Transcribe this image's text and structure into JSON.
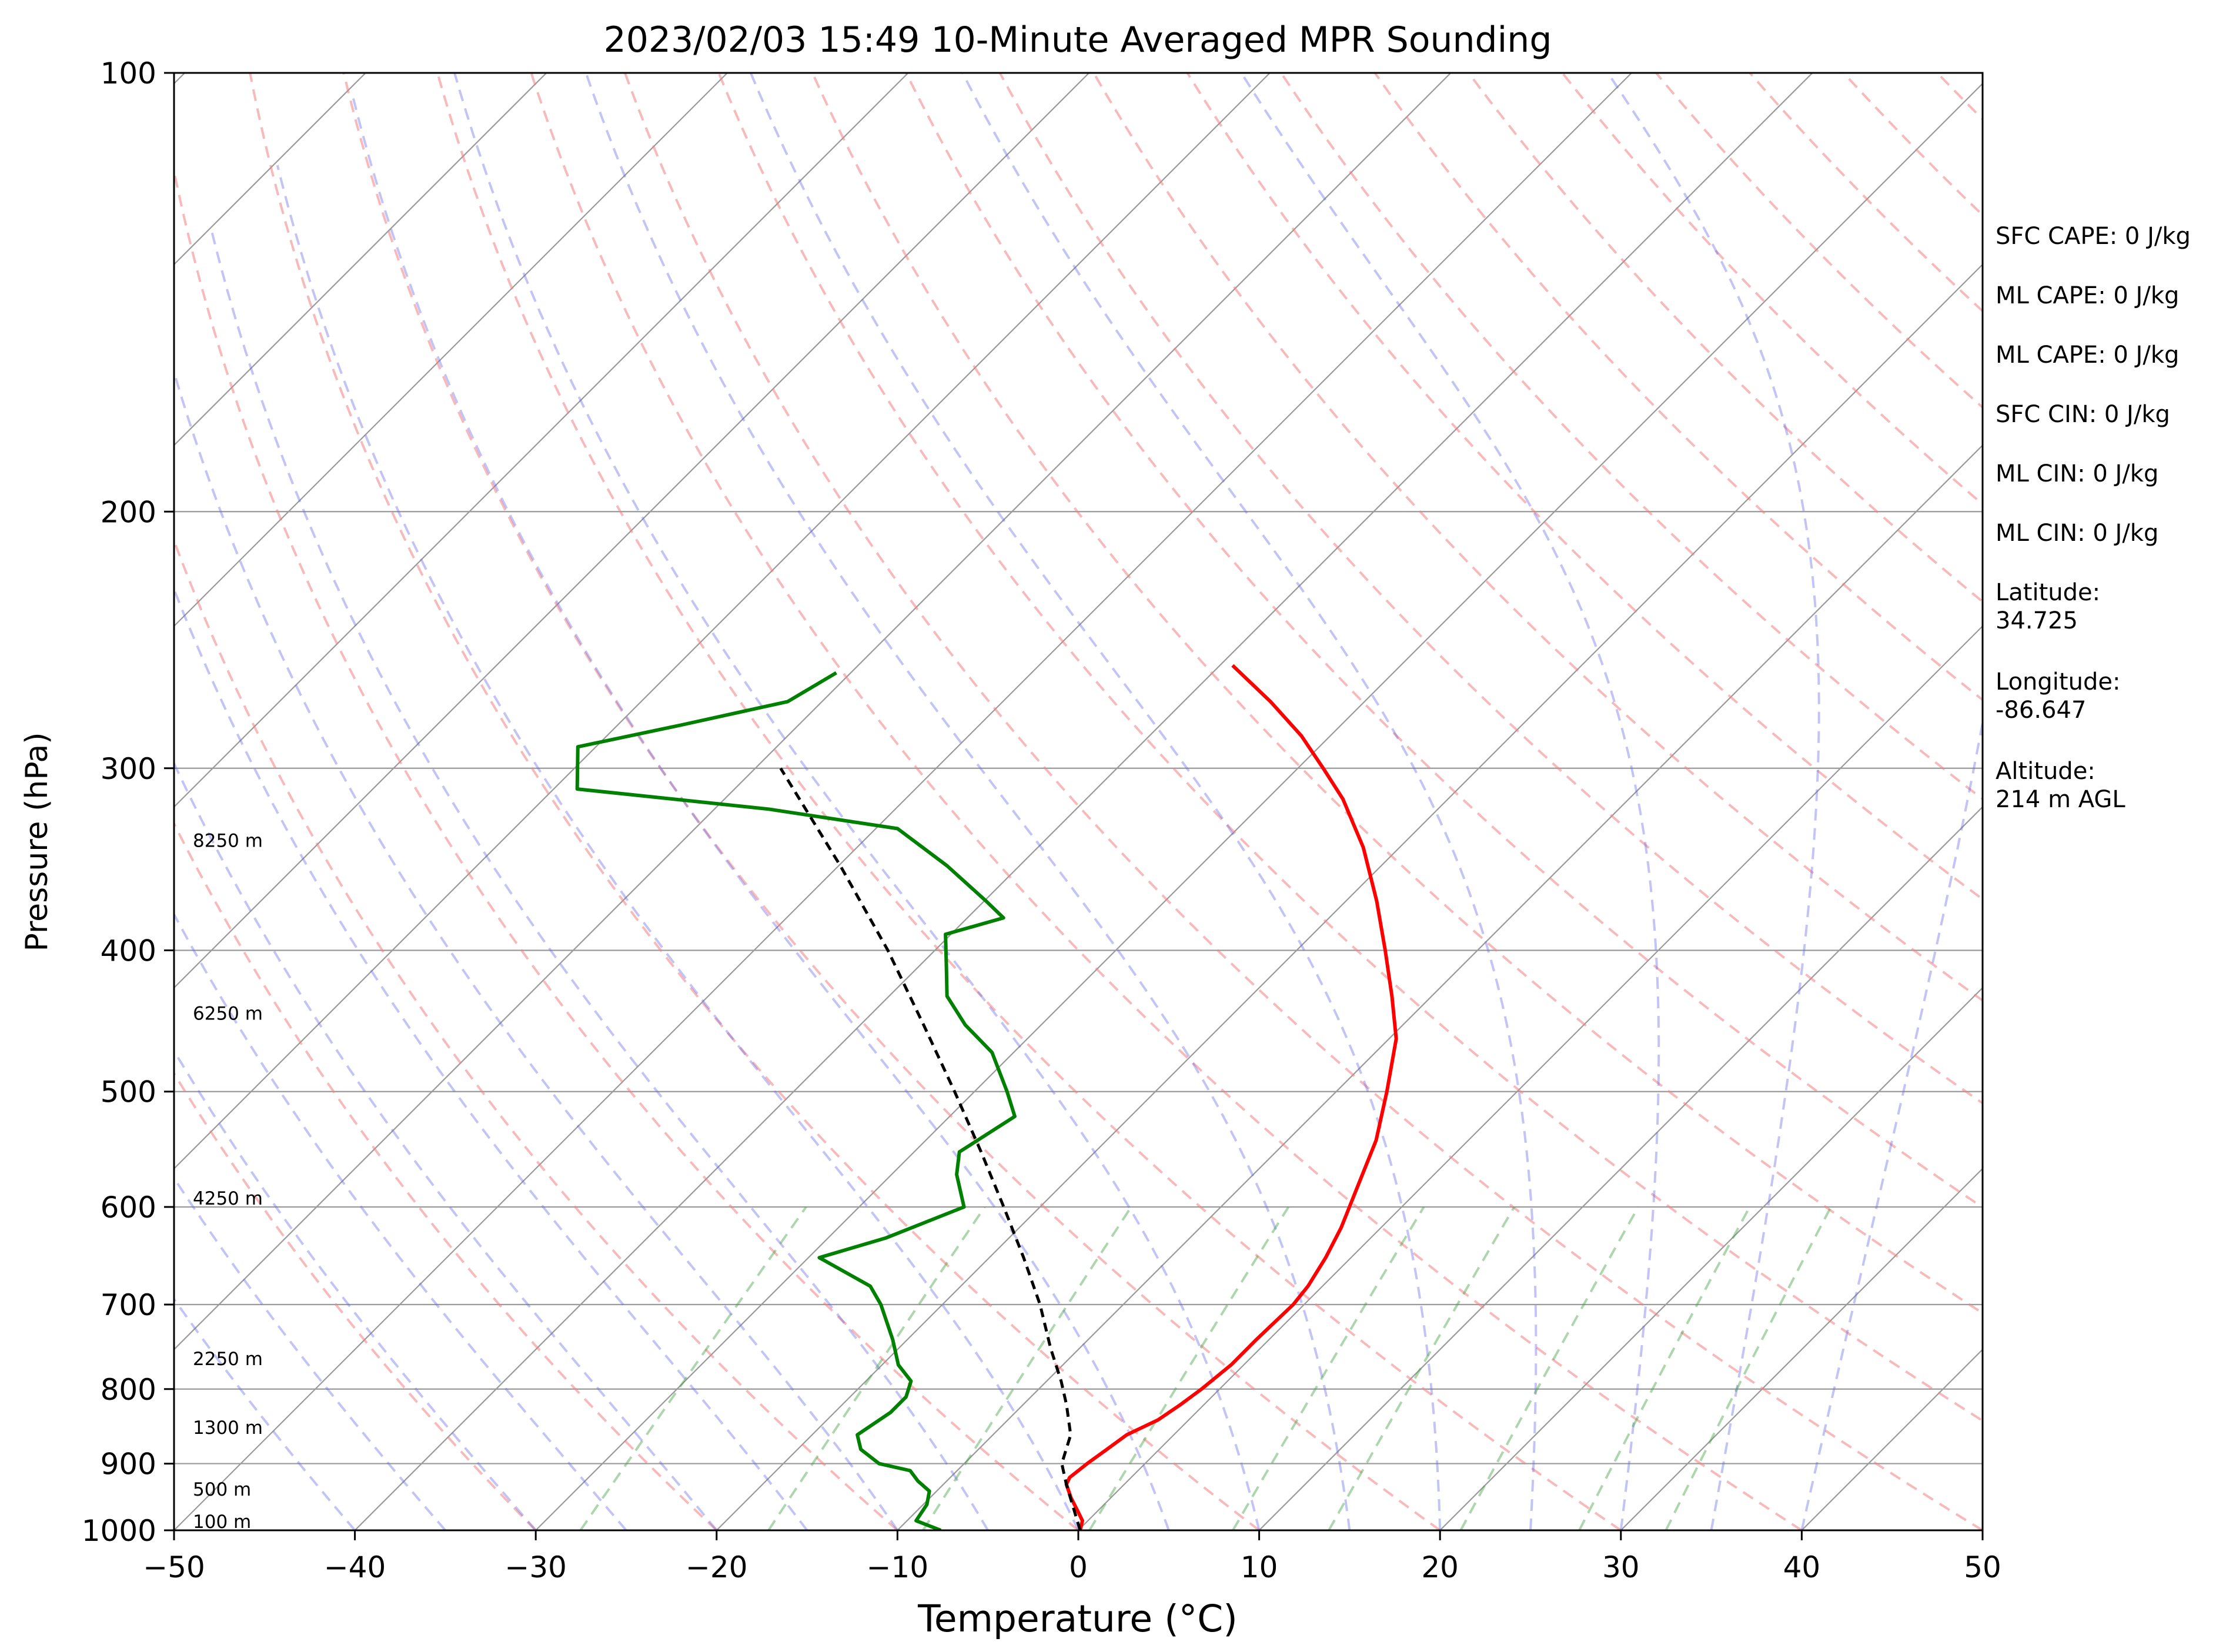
{
  "chart_data": {
    "type": "line",
    "title": "2023/02/03 15:49 10-Minute Averaged MPR Sounding",
    "xlabel": "Temperature (°C)",
    "ylabel": "Pressure (hPa)",
    "xlim": [
      -50,
      50
    ],
    "ylim": [
      1000,
      100
    ],
    "y_scale": "log",
    "skew_degrees": 45,
    "xticks": [
      "−50",
      "−40",
      "−30",
      "−20",
      "−10",
      "0",
      "10",
      "20",
      "30",
      "40",
      "50"
    ],
    "yticks": [
      "100",
      "200",
      "300",
      "400",
      "500",
      "600",
      "700",
      "800",
      "900",
      "1000"
    ],
    "grid": "horizontal isobars and skewed isotherms",
    "background_lines": {
      "dry_adiabats_color": "#f08080",
      "moist_adiabats_color": "#6a6ae8",
      "mixing_ratio_color": "#4aa44a"
    },
    "series": [
      {
        "color": "#ff0000",
        "points": [
          [
            1000,
            0.1
          ],
          [
            985,
            -0.3
          ],
          [
            970,
            -1.1
          ],
          [
            950,
            -2.2
          ],
          [
            930,
            -3.2
          ],
          [
            920,
            -3.4
          ],
          [
            900,
            -3.2
          ],
          [
            880,
            -2.9
          ],
          [
            860,
            -2.6
          ],
          [
            840,
            -1.7
          ],
          [
            820,
            -1.3
          ],
          [
            800,
            -1.0
          ],
          [
            770,
            -0.7
          ],
          [
            740,
            -0.7
          ],
          [
            700,
            -0.6
          ],
          [
            680,
            -0.8
          ],
          [
            650,
            -1.4
          ],
          [
            620,
            -2.2
          ],
          [
            580,
            -3.6
          ],
          [
            540,
            -5.1
          ],
          [
            500,
            -7.2
          ],
          [
            460,
            -9.6
          ],
          [
            430,
            -12.2
          ],
          [
            400,
            -15.1
          ],
          [
            370,
            -18.3
          ],
          [
            340,
            -22.0
          ],
          [
            315,
            -25.8
          ],
          [
            300,
            -28.6
          ],
          [
            285,
            -31.6
          ],
          [
            270,
            -35.2
          ],
          [
            255,
            -39.3
          ]
        ]
      },
      {
        "color": "#008000",
        "points": [
          [
            1000,
            -7.6
          ],
          [
            985,
            -9.5
          ],
          [
            960,
            -9.8
          ],
          [
            940,
            -10.4
          ],
          [
            925,
            -11.6
          ],
          [
            910,
            -12.6
          ],
          [
            900,
            -14.7
          ],
          [
            880,
            -16.5
          ],
          [
            860,
            -17.5
          ],
          [
            830,
            -16.9
          ],
          [
            810,
            -16.9
          ],
          [
            790,
            -17.5
          ],
          [
            770,
            -19.1
          ],
          [
            740,
            -20.8
          ],
          [
            700,
            -23.4
          ],
          [
            680,
            -25.0
          ],
          [
            650,
            -29.4
          ],
          [
            630,
            -26.8
          ],
          [
            600,
            -24.2
          ],
          [
            570,
            -26.4
          ],
          [
            550,
            -27.5
          ],
          [
            520,
            -26.4
          ],
          [
            500,
            -28.2
          ],
          [
            470,
            -31.2
          ],
          [
            450,
            -34.2
          ],
          [
            430,
            -36.8
          ],
          [
            410,
            -38.5
          ],
          [
            390,
            -40.3
          ],
          [
            380,
            -38.0
          ],
          [
            370,
            -39.9
          ],
          [
            350,
            -44.0
          ],
          [
            330,
            -48.8
          ],
          [
            320,
            -57.0
          ],
          [
            310,
            -68.7
          ],
          [
            290,
            -71.0
          ],
          [
            280,
            -66.4
          ],
          [
            270,
            -61.9
          ],
          [
            258,
            -60.8
          ]
        ]
      },
      {
        "color": "#000000",
        "dashed": true,
        "points": [
          [
            1000,
            0.1
          ],
          [
            930,
            -3.2
          ],
          [
            900,
            -4.6
          ],
          [
            860,
            -5.7
          ],
          [
            820,
            -7.6
          ],
          [
            790,
            -9.2
          ],
          [
            750,
            -11.6
          ],
          [
            700,
            -14.6
          ],
          [
            650,
            -18.1
          ],
          [
            600,
            -22.0
          ],
          [
            550,
            -26.3
          ],
          [
            500,
            -31.1
          ],
          [
            450,
            -36.5
          ],
          [
            400,
            -42.6
          ],
          [
            350,
            -49.9
          ],
          [
            300,
            -58.6
          ]
        ]
      }
    ],
    "height_labels": [
      {
        "p": 1000,
        "text": "100 m"
      },
      {
        "p": 950,
        "text": "500 m"
      },
      {
        "p": 862,
        "text": "1300 m"
      },
      {
        "p": 773,
        "text": "2250 m"
      },
      {
        "p": 600,
        "text": "4250 m"
      },
      {
        "p": 448,
        "text": "6250 m"
      },
      {
        "p": 341,
        "text": "8250 m"
      }
    ],
    "annotations": [
      "SFC CAPE: 0 J/kg",
      "ML CAPE: 0 J/kg",
      "ML CAPE: 0 J/kg",
      "SFC CIN: 0 J/kg",
      "ML CIN: 0 J/kg",
      "ML CIN: 0 J/kg",
      "Latitude:\n34.725",
      "Longitude:\n-86.647",
      "Altitude:\n214 m AGL"
    ]
  }
}
